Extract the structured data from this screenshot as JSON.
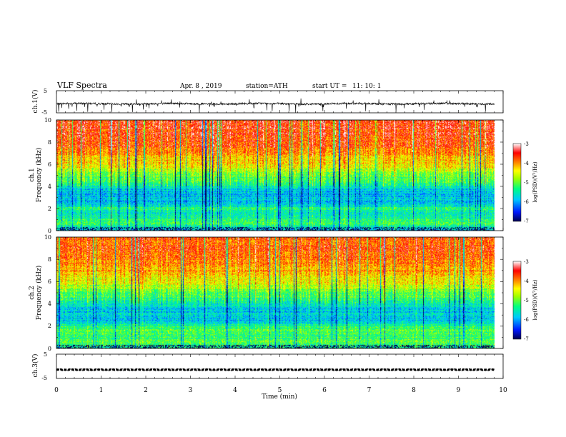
{
  "header": {
    "title": "VLF Spectra",
    "date": "Apr. 8 , 2019",
    "station": "station=ATH",
    "start": "start UT =",
    "start_time": "11: 10: 1"
  },
  "chart_data": [
    {
      "type": "line",
      "panel": "ch1-waveform",
      "ylabel": "ch.1(V)",
      "ylim": [
        -5,
        5
      ],
      "yticks": [
        "5",
        "-5"
      ],
      "xlim": [
        0,
        10
      ],
      "x_extent_min": 9.8,
      "typical_range": [
        -1.4,
        -0.4
      ],
      "spike_range": [
        -5,
        1.5
      ]
    },
    {
      "type": "heatmap",
      "panel": "ch1-spectrogram",
      "ylabel_channel": "ch.1",
      "ylabel": "Frequency (kHz)",
      "ylim": [
        0,
        10
      ],
      "yticks": [
        "0",
        "2",
        "4",
        "6",
        "8",
        "10"
      ],
      "xlim": [
        0,
        10
      ],
      "x_extent_min": 9.8,
      "colorbar": {
        "label": "log(PSD)(V²/Hz)",
        "range": [
          -7,
          -3
        ],
        "ticks": [
          "-3",
          "-4",
          "-5",
          "-6",
          "-7"
        ],
        "colormap": [
          "#00004f",
          "#0018ff",
          "#00c8ff",
          "#00ff80",
          "#a0ff00",
          "#ffff00",
          "#ff8000",
          "#ff0000",
          "#ffffff"
        ]
      },
      "profile_khz_logpsd": [
        [
          0,
          -5.8
        ],
        [
          0.5,
          -5.2
        ],
        [
          1,
          -5.3
        ],
        [
          1.5,
          -5.6
        ],
        [
          2,
          -5.3
        ],
        [
          2.5,
          -5.9
        ],
        [
          3,
          -5.8
        ],
        [
          3.5,
          -5.9
        ],
        [
          4,
          -5.5
        ],
        [
          5,
          -4.9
        ],
        [
          6,
          -4.4
        ],
        [
          7,
          -4.0
        ],
        [
          8,
          -3.7
        ],
        [
          9,
          -3.6
        ],
        [
          10,
          -3.6
        ]
      ]
    },
    {
      "type": "heatmap",
      "panel": "ch2-spectrogram",
      "ylabel_channel": "ch.2",
      "ylabel": "Frequency (kHz)",
      "ylim": [
        0,
        10
      ],
      "yticks": [
        "0",
        "2",
        "4",
        "6",
        "8",
        "10"
      ],
      "xlim": [
        0,
        10
      ],
      "x_extent_min": 9.8,
      "colorbar": {
        "label": "log(PSD)(V²/Hz)",
        "range": [
          -7,
          -3
        ],
        "ticks": [
          "-3",
          "-4",
          "-5",
          "-6",
          "-7"
        ],
        "colormap": [
          "#00004f",
          "#0018ff",
          "#00c8ff",
          "#00ff80",
          "#a0ff00",
          "#ffff00",
          "#ff8000",
          "#ff0000",
          "#ffffff"
        ]
      },
      "profile_khz_logpsd": [
        [
          0,
          -5.4
        ],
        [
          0.5,
          -5.1
        ],
        [
          1,
          -5.2
        ],
        [
          1.5,
          -5.1
        ],
        [
          2,
          -5.3
        ],
        [
          2.5,
          -5.8
        ],
        [
          3,
          -5.7
        ],
        [
          3.5,
          -5.8
        ],
        [
          4,
          -5.5
        ],
        [
          5,
          -5.0
        ],
        [
          6,
          -4.5
        ],
        [
          7,
          -4.1
        ],
        [
          8,
          -3.9
        ],
        [
          9,
          -3.8
        ],
        [
          10,
          -3.8
        ]
      ]
    },
    {
      "type": "line",
      "panel": "ch3-waveform",
      "ylabel": "ch.3(V)",
      "xlabel": "Time (min)",
      "ylim": [
        -5,
        5
      ],
      "yticks": [
        "5",
        "-5"
      ],
      "xlim": [
        0,
        10
      ],
      "xticks": [
        "0",
        "1",
        "2",
        "3",
        "4",
        "5",
        "6",
        "7",
        "8",
        "9",
        "10"
      ],
      "x_extent_min": 9.8,
      "pulse_levels_v": [
        -1.5,
        -1.3
      ]
    }
  ]
}
